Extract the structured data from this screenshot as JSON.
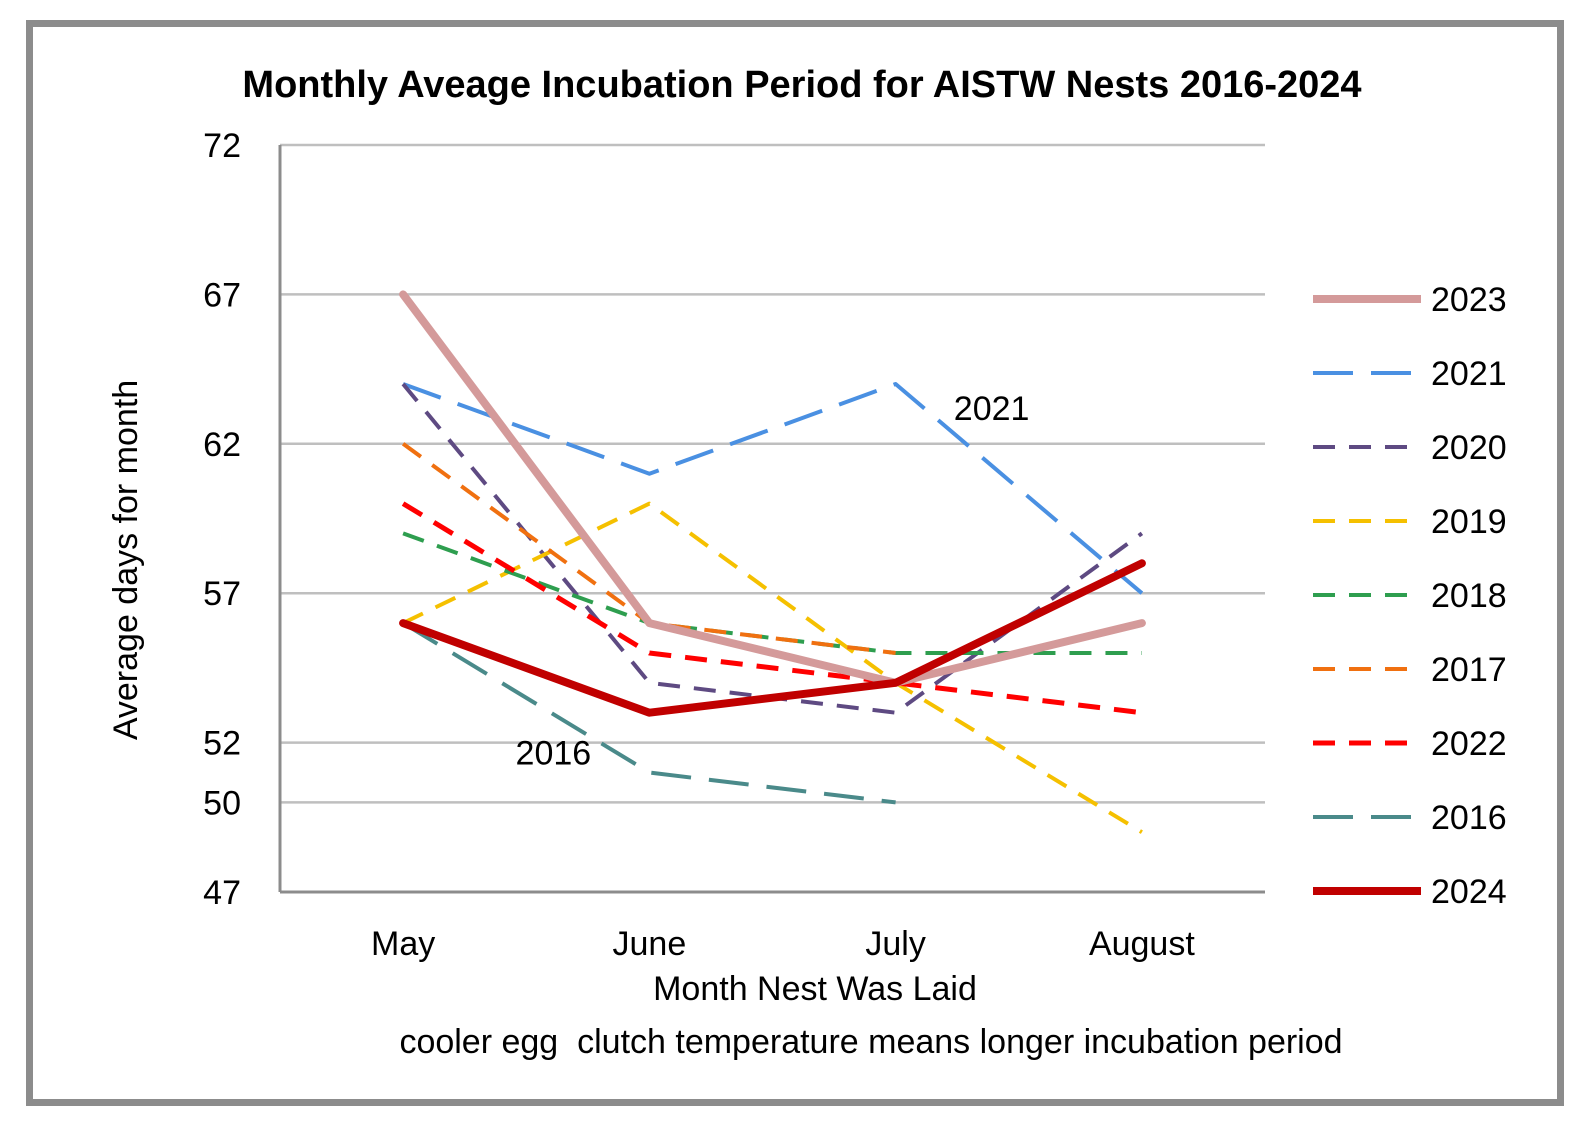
{
  "chart_data": {
    "type": "line",
    "title": "Monthly Aveage Incubation Period for AISTW Nests 2016-2024",
    "xlabel": "Month Nest Was Laid",
    "ylabel": "Average days for month",
    "caption": "cooler egg  clutch temperature means longer incubation period",
    "categories": [
      "May",
      "June",
      "July",
      "August"
    ],
    "ylim": [
      47,
      72
    ],
    "yticks": [
      72,
      67,
      62,
      57,
      52,
      50,
      47
    ],
    "grid": true,
    "legend_position": "right",
    "series": [
      {
        "name": "2023",
        "values": [
          67,
          56,
          54,
          56
        ],
        "color": "#d49a9a",
        "dash": "solid",
        "width": 8
      },
      {
        "name": "2021",
        "values": [
          64,
          61,
          64,
          57
        ],
        "color": "#4a90e2",
        "dash": "long",
        "width": 4
      },
      {
        "name": "2020",
        "values": [
          64,
          54,
          53,
          59
        ],
        "color": "#5e4a82",
        "dash": "medium",
        "width": 4
      },
      {
        "name": "2019",
        "values": [
          56,
          60,
          54,
          49
        ],
        "color": "#f5c000",
        "dash": "medium",
        "width": 4
      },
      {
        "name": "2018",
        "values": [
          59,
          56,
          55,
          55
        ],
        "color": "#2e9e4f",
        "dash": "medium",
        "width": 4
      },
      {
        "name": "2017",
        "values": [
          62,
          56,
          55,
          null
        ],
        "color": "#f07010",
        "dash": "medium",
        "width": 4
      },
      {
        "name": "2022",
        "values": [
          60,
          55,
          54,
          53
        ],
        "color": "#ff0000",
        "dash": "medium",
        "width": 5
      },
      {
        "name": "2016",
        "values": [
          56,
          51,
          50,
          null
        ],
        "color": "#4a8a8a",
        "dash": "long",
        "width": 4
      },
      {
        "name": "2024",
        "values": [
          56,
          53,
          54,
          58
        ],
        "color": "#c00000",
        "dash": "solid",
        "width": 8
      }
    ],
    "annotations": [
      {
        "text": "2021",
        "series": "2021",
        "category": "July"
      },
      {
        "text": "2016",
        "series": "2016",
        "category": "June"
      }
    ]
  }
}
